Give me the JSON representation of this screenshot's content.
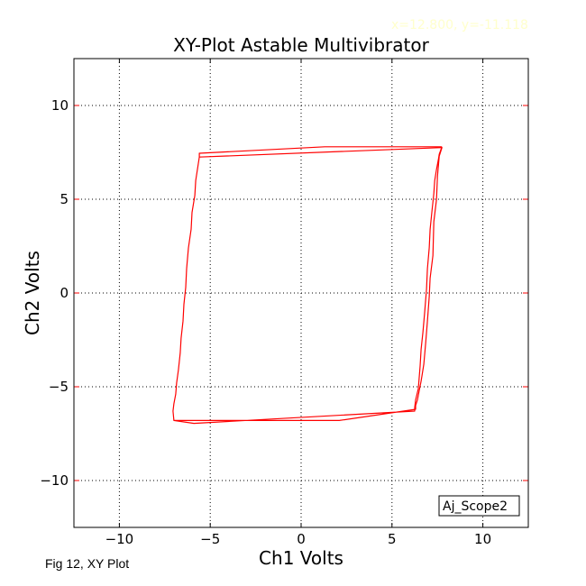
{
  "coordinate_readout": "x=12.800, y=-11.118",
  "caption": "Fig 12, XY Plot",
  "chart_data": {
    "type": "line",
    "title": "XY-Plot  Astable Multivibrator",
    "xlabel": "Ch1 Volts",
    "ylabel": "Ch2 Volts",
    "xlim": [
      -12.5,
      12.5
    ],
    "ylim": [
      -12.5,
      12.5
    ],
    "xticks": [
      -10,
      -5,
      0,
      5,
      10
    ],
    "yticks": [
      -10,
      -5,
      0,
      5,
      10
    ],
    "xtick_labels": [
      "−10",
      "−5",
      "0",
      "5",
      "10"
    ],
    "ytick_labels": [
      "−10",
      "−5",
      "0",
      "5",
      "10"
    ],
    "grid": true,
    "grid_style": "dotted",
    "legend_label": "Aj_Scope2",
    "legend_position": "bottom-right",
    "line_color": "#ff0000",
    "series": [
      {
        "x": [
          7.75,
          1.3,
          -5.6,
          -5.6,
          7.6,
          7.75,
          7.6,
          7.5,
          7.45,
          7.3,
          7.25,
          7.1,
          7.05,
          6.95,
          6.85,
          6.75,
          6.6,
          6.5,
          6.4,
          6.3,
          6.3,
          2.1,
          -7.0,
          -7.0,
          -5.9,
          6.25,
          6.25,
          6.3,
          6.45,
          6.5,
          6.55,
          6.6,
          6.7,
          6.8,
          6.9,
          6.95,
          7.05,
          7.1,
          7.2,
          7.3,
          7.35,
          7.45,
          7.55,
          7.6,
          7.75
        ],
        "y": [
          7.8,
          7.8,
          7.45,
          7.25,
          7.75,
          7.75,
          7.3,
          6.2,
          5.0,
          3.8,
          2.0,
          0.8,
          -0.2,
          -1.5,
          -2.7,
          -3.8,
          -4.7,
          -5.2,
          -5.7,
          -6.0,
          -6.2,
          -6.8,
          -6.8,
          -6.8,
          -6.95,
          -6.3,
          -6.1,
          -5.7,
          -5.1,
          -4.5,
          -3.9,
          -3.0,
          -2.1,
          -1.0,
          0.2,
          1.3,
          2.4,
          3.4,
          4.4,
          5.3,
          6.0,
          6.6,
          7.1,
          7.4,
          7.8
        ]
      },
      {
        "x": [
          -5.6,
          -5.8,
          -5.85,
          -6.0,
          -6.05,
          -6.2,
          -6.3,
          -6.35,
          -6.45,
          -6.5,
          -6.6,
          -6.65,
          -6.75,
          -6.85,
          -6.9,
          -7.0,
          -7.05,
          -7.0
        ],
        "y": [
          7.25,
          6.0,
          5.2,
          4.3,
          3.4,
          2.4,
          1.3,
          0.3,
          -0.6,
          -1.5,
          -2.4,
          -3.2,
          -4.1,
          -4.8,
          -5.4,
          -5.9,
          -6.3,
          -6.8
        ]
      }
    ]
  }
}
